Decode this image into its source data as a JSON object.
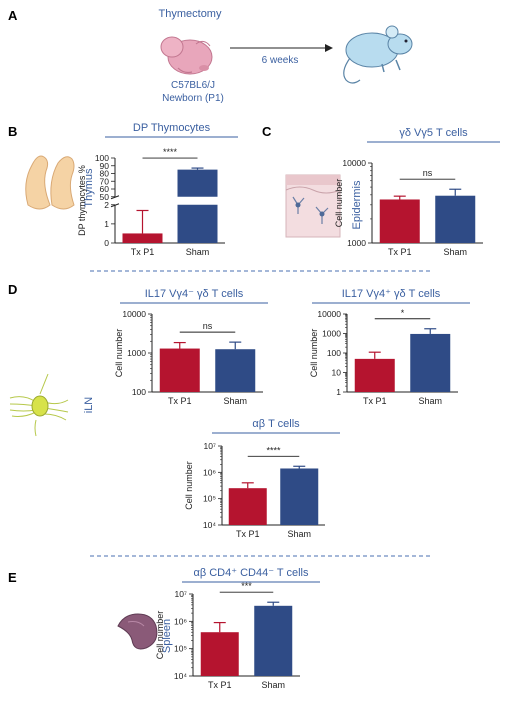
{
  "colors": {
    "tx": "#b5142f",
    "sham": "#2f4b86",
    "blue_text": "#3a5fa0",
    "title_line": "#3a5fa0",
    "divider": "#4a6fb0",
    "axis": "#222222"
  },
  "icons": [
    "pink-mouse-pup-icon",
    "arrow-right-icon",
    "adult-mouse-icon",
    "thymus-organ-icon",
    "epidermis-tissue-icon",
    "lymph-node-icon",
    "spleen-organ-icon"
  ],
  "panels": {
    "A": {
      "letter": "A",
      "title": "Thymectomy",
      "mouse_line1": "C57BL6/J",
      "mouse_line2": "Newborn (P1)",
      "arrow_label": "6 weeks"
    },
    "B": {
      "letter": "B",
      "organ_label": "Thymus"
    },
    "C": {
      "letter": "C",
      "organ_label": "Epidermis"
    },
    "D": {
      "letter": "D",
      "organ_label": "iLN"
    },
    "E": {
      "letter": "E",
      "organ_label": "Spleen"
    }
  },
  "chart_data": [
    {
      "id": "B",
      "type": "bar",
      "title": "DP Thymocytes",
      "ylabel": "DP thymocytes %",
      "categories": [
        "Tx P1",
        "Sham"
      ],
      "values": [
        0.5,
        85
      ],
      "errors": [
        1.2,
        2
      ],
      "scale": "broken-linear",
      "ylim_lower": [
        0,
        2
      ],
      "ylim_upper": [
        50,
        100
      ],
      "yticks_lower": [
        "0",
        "1",
        "2"
      ],
      "yticks_upper": [
        "50",
        "60",
        "70",
        "80",
        "90",
        "100"
      ],
      "significance": "****"
    },
    {
      "id": "C",
      "type": "bar",
      "title": "γδ Vγ5 T cells",
      "ylabel": "Cell number",
      "categories": [
        "Tx P1",
        "Sham"
      ],
      "values": [
        3500,
        3900
      ],
      "errors": [
        350,
        800
      ],
      "scale": "log",
      "ylim": [
        1000,
        10000
      ],
      "yticks": [
        "1000",
        "10000"
      ],
      "significance": "ns"
    },
    {
      "id": "D1",
      "type": "bar",
      "title": "IL17 Vγ4⁻ γδ T cells",
      "ylabel": "Cell number",
      "categories": [
        "Tx P1",
        "Sham"
      ],
      "values": [
        1300,
        1250
      ],
      "errors": [
        550,
        650
      ],
      "scale": "log",
      "ylim": [
        100,
        10000
      ],
      "yticks": [
        "100",
        "1000",
        "10000"
      ],
      "significance": "ns"
    },
    {
      "id": "D2",
      "type": "bar",
      "title": "IL17 Vγ4⁺ γδ T cells",
      "ylabel": "Cell number",
      "categories": [
        "Tx P1",
        "Sham"
      ],
      "values": [
        50,
        950
      ],
      "errors": [
        60,
        800
      ],
      "scale": "log",
      "ylim": [
        1,
        10000
      ],
      "yticks": [
        "1",
        "10",
        "100",
        "1000",
        "10000"
      ],
      "significance": "*"
    },
    {
      "id": "D3",
      "type": "bar",
      "title": "αβ T cells",
      "ylabel": "Cell number",
      "categories": [
        "Tx P1",
        "Sham"
      ],
      "values": [
        250000,
        1400000
      ],
      "errors": [
        150000,
        300000
      ],
      "scale": "log",
      "ylim": [
        10000,
        10000000
      ],
      "yticks": [
        "10⁴",
        "10⁵",
        "10⁶",
        "10⁷"
      ],
      "significance": "****"
    },
    {
      "id": "E",
      "type": "bar",
      "title": "αβ CD4⁺ CD44⁻ T cells",
      "ylabel": "Cell number",
      "categories": [
        "Tx P1",
        "Sham"
      ],
      "values": [
        400000,
        3700000
      ],
      "errors": [
        500000,
        1300000
      ],
      "scale": "log",
      "ylim": [
        10000,
        10000000
      ],
      "yticks": [
        "10⁴",
        "10⁵",
        "10⁶",
        "10⁷"
      ],
      "significance": "***"
    }
  ]
}
